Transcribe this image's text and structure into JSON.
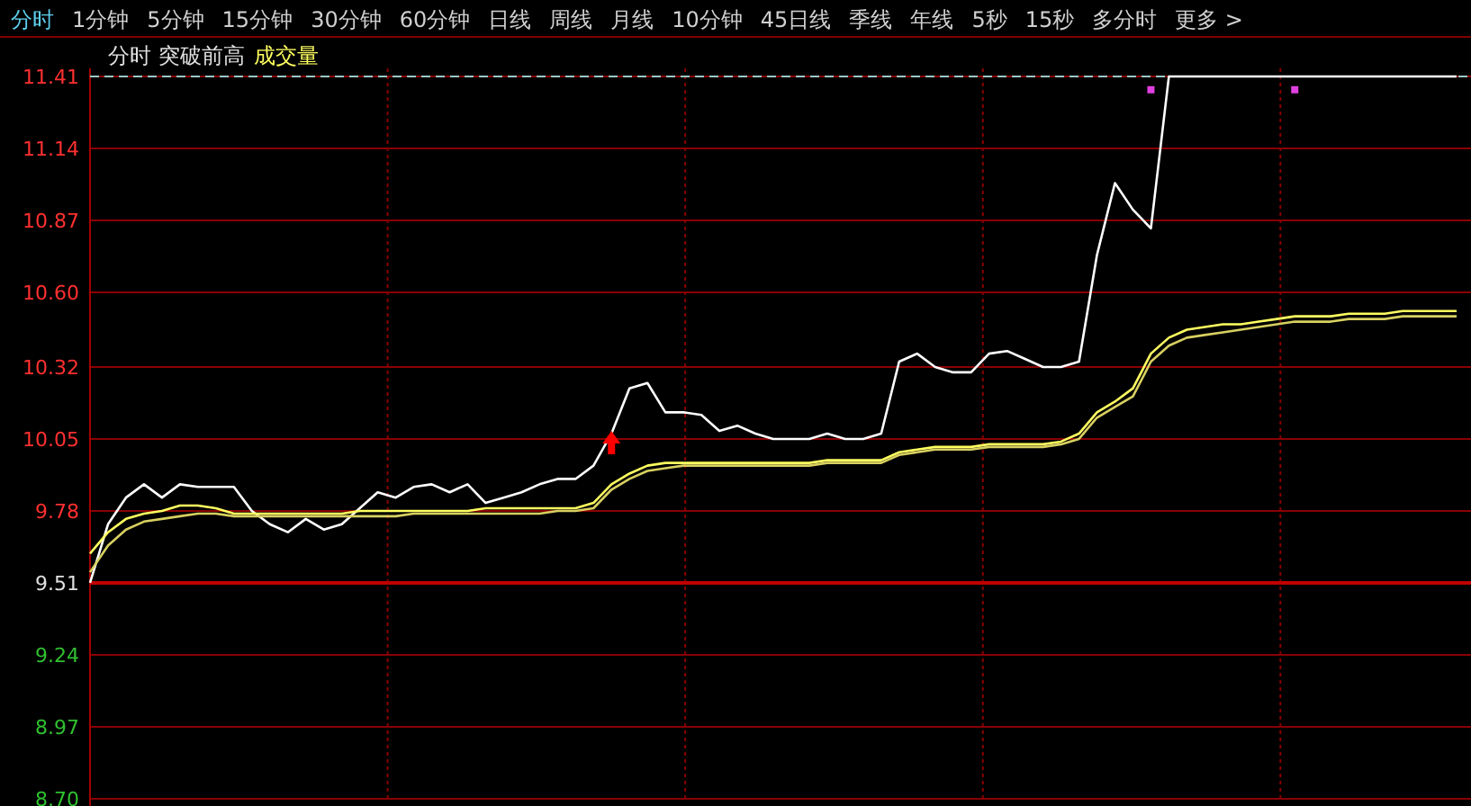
{
  "chart_data": {
    "type": "line",
    "title": "分时 突破前高",
    "subtitle": "成交量",
    "annotations": [
      "分时",
      "1分钟",
      "5分钟",
      "15分钟",
      "30分钟",
      "60分钟",
      "日线",
      "周线",
      "月线",
      "10分钟",
      "45日线",
      "季线",
      "年线",
      "5秒",
      "15秒",
      "多分时",
      "更多 >"
    ],
    "categories": [
      null,
      null,
      null,
      null,
      null,
      null,
      null,
      null,
      null,
      null,
      null,
      null,
      null,
      null,
      null,
      null,
      null,
      null,
      null,
      null,
      null,
      null,
      null,
      null,
      null,
      null,
      null,
      null,
      null,
      null,
      null,
      null,
      null,
      null,
      null,
      null,
      null,
      null,
      null,
      null,
      null,
      null,
      null,
      null,
      null,
      null,
      null,
      null,
      null,
      null,
      null,
      null,
      null,
      null,
      null,
      null,
      null,
      null,
      null,
      null,
      null,
      null,
      null,
      null,
      null,
      null,
      null,
      null,
      null,
      null,
      null,
      null,
      null,
      null,
      null,
      null,
      null
    ],
    "series": [
      {
        "color": "#ffffff",
        "values": [
          9.51,
          9.73,
          9.83,
          9.88,
          9.83,
          9.88,
          9.87,
          9.87,
          9.87,
          9.78,
          9.73,
          9.7,
          9.75,
          9.71,
          9.73,
          9.79,
          9.85,
          9.83,
          9.87,
          9.88,
          9.85,
          9.88,
          9.81,
          9.83,
          9.85,
          9.88,
          9.9,
          9.9,
          9.95,
          10.07,
          10.24,
          10.26,
          10.15,
          10.15,
          10.14,
          10.08,
          10.1,
          10.07,
          10.05,
          10.05,
          10.05,
          10.07,
          10.05,
          10.05,
          10.07,
          10.34,
          10.37,
          10.32,
          10.3,
          10.3,
          10.37,
          10.38,
          10.35,
          10.32,
          10.32,
          10.34,
          10.74,
          11.01,
          10.91,
          10.84,
          11.41,
          11.41,
          11.41,
          11.41,
          11.41,
          11.41,
          11.41,
          11.41,
          11.41,
          11.41,
          11.41,
          11.41,
          11.41,
          11.41,
          11.41,
          11.41,
          11.41
        ]
      },
      {
        "color": "#ffff60",
        "values": [
          9.62,
          9.7,
          9.75,
          9.77,
          9.78,
          9.8,
          9.8,
          9.79,
          9.77,
          9.77,
          9.77,
          9.77,
          9.77,
          9.77,
          9.77,
          9.78,
          9.78,
          9.78,
          9.78,
          9.78,
          9.78,
          9.78,
          9.79,
          9.79,
          9.79,
          9.79,
          9.79,
          9.79,
          9.81,
          9.88,
          9.92,
          9.95,
          9.96,
          9.96,
          9.96,
          9.96,
          9.96,
          9.96,
          9.96,
          9.96,
          9.96,
          9.97,
          9.97,
          9.97,
          9.97,
          10.0,
          10.01,
          10.02,
          10.02,
          10.02,
          10.03,
          10.03,
          10.03,
          10.03,
          10.04,
          10.07,
          10.15,
          10.19,
          10.24,
          10.37,
          10.43,
          10.46,
          10.47,
          10.48,
          10.48,
          10.49,
          10.5,
          10.51,
          10.51,
          10.51,
          10.52,
          10.52,
          10.52,
          10.53,
          10.53,
          10.53,
          10.53
        ]
      },
      {
        "color": "#d8d060",
        "values": [
          9.55,
          9.65,
          9.71,
          9.74,
          9.75,
          9.76,
          9.77,
          9.77,
          9.76,
          9.76,
          9.76,
          9.76,
          9.76,
          9.76,
          9.76,
          9.76,
          9.76,
          9.76,
          9.77,
          9.77,
          9.77,
          9.77,
          9.77,
          9.77,
          9.77,
          9.77,
          9.78,
          9.78,
          9.79,
          9.86,
          9.9,
          9.93,
          9.94,
          9.95,
          9.95,
          9.95,
          9.95,
          9.95,
          9.95,
          9.95,
          9.95,
          9.96,
          9.96,
          9.96,
          9.96,
          9.99,
          10.0,
          10.01,
          10.01,
          10.01,
          10.02,
          10.02,
          10.02,
          10.02,
          10.03,
          10.05,
          10.13,
          10.17,
          10.21,
          10.34,
          10.4,
          10.43,
          10.44,
          10.45,
          10.46,
          10.47,
          10.48,
          10.49,
          10.49,
          10.49,
          10.5,
          10.5,
          10.5,
          10.51,
          10.51,
          10.51,
          10.51
        ]
      },
      {
        "type": "scatter",
        "marker": "triangle",
        "color": "#ff0000",
        "values": [
          null,
          null,
          null,
          null,
          null,
          null,
          null,
          null,
          null,
          null,
          null,
          null,
          null,
          null,
          null,
          null,
          null,
          null,
          null,
          null,
          null,
          null,
          null,
          null,
          null,
          null,
          null,
          null,
          null,
          10.04,
          null,
          null,
          null,
          null,
          null,
          null,
          null,
          null,
          null,
          null,
          null,
          null,
          null,
          null,
          null,
          null,
          null,
          null,
          null,
          null,
          null,
          null,
          null,
          null,
          null,
          null,
          null,
          null,
          null,
          null,
          null,
          null,
          null,
          null,
          null,
          null,
          null,
          null,
          null,
          null,
          null,
          null,
          null,
          null,
          null,
          null,
          null
        ]
      },
      {
        "type": "scatter",
        "marker": "square",
        "color": "#e040e0",
        "values": [
          null,
          null,
          null,
          null,
          null,
          null,
          null,
          null,
          null,
          null,
          null,
          null,
          null,
          null,
          null,
          null,
          null,
          null,
          null,
          null,
          null,
          null,
          null,
          null,
          null,
          null,
          null,
          null,
          null,
          null,
          null,
          null,
          null,
          null,
          null,
          null,
          null,
          null,
          null,
          null,
          null,
          null,
          null,
          null,
          null,
          null,
          null,
          null,
          null,
          null,
          null,
          null,
          null,
          null,
          null,
          null,
          null,
          null,
          null,
          11.36,
          null,
          null,
          null,
          null,
          null,
          null,
          null,
          11.36,
          null,
          null,
          null,
          null,
          null,
          null,
          null,
          null,
          null
        ]
      }
    ],
    "ylim": [
      8.7,
      11.42
    ],
    "yticks": [
      {
        "value": 8.7,
        "label": "8.70"
      },
      8.97,
      9.24,
      9.51,
      9.78,
      10.05,
      10.32,
      {
        "value": 10.6,
        "label": "10.60"
      },
      10.87,
      11.14,
      11.41
    ],
    "ref_lines": [
      {
        "axis": "y",
        "value": 9.51,
        "color": "#c00000",
        "line_style": "solid"
      },
      {
        "axis": "y",
        "value": 11.41,
        "color": "#9cc8c8",
        "line_style": "dashed"
      }
    ],
    "grid": true,
    "marker": "none",
    "line_style": "solid"
  }
}
